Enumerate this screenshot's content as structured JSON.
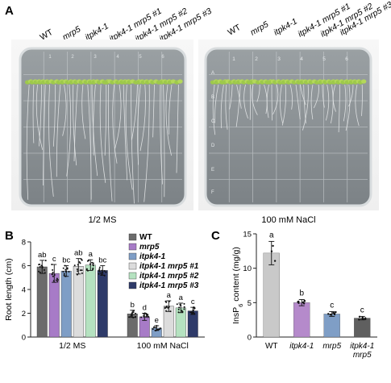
{
  "panels": {
    "A": {
      "label": "A",
      "genotype_labels": [
        "WT",
        "mrp5",
        "itpk4-1",
        "itpk4-1 mrp5 #1",
        "itpk4-1 mrp5 #2",
        "itpk4-1 mrp5 #3"
      ],
      "plate_left_caption": "1/2 MS",
      "plate_right_caption": "100 mM NaCl",
      "plate_column_numbers": [
        "1",
        "2",
        "3",
        "4",
        "5",
        "6"
      ],
      "plate_row_letters": [
        "A",
        "B",
        "C",
        "D",
        "E",
        "F"
      ]
    },
    "B": {
      "label": "B"
    },
    "C": {
      "label": "C"
    }
  },
  "chart_data": [
    {
      "type": "bar",
      "panel": "B",
      "title": "",
      "xlabel": "",
      "ylabel": "Root length (cm)",
      "ylim": [
        0,
        8
      ],
      "yticks": [
        "0",
        "2",
        "4",
        "6",
        "8"
      ],
      "categories": [
        "1/2 MS",
        "100 mM NaCl"
      ],
      "legend_position": "top-right",
      "series": [
        {
          "name": "WT",
          "color": "#6b6b6b",
          "values": [
            5.9,
            1.95
          ],
          "errors": [
            0.55,
            0.3
          ],
          "letters": [
            "ab",
            "b"
          ]
        },
        {
          "name": "mrp5",
          "color": "#a77bc7",
          "values": [
            5.35,
            1.7
          ],
          "errors": [
            0.75,
            0.3
          ],
          "letters": [
            "c",
            "d"
          ]
        },
        {
          "name": "itpk4-1",
          "color": "#7f9ec6",
          "values": [
            5.55,
            0.75
          ],
          "errors": [
            0.45,
            0.2
          ],
          "letters": [
            "bc",
            "e"
          ]
        },
        {
          "name": "itpk4-1 mrp5 #1",
          "color": "#dcdcdc",
          "values": [
            5.95,
            2.6
          ],
          "errors": [
            0.65,
            0.45
          ],
          "letters": [
            "ab",
            "a"
          ]
        },
        {
          "name": "itpk4-1 mrp5 #2",
          "color": "#b5e2c0",
          "values": [
            6.05,
            2.45
          ],
          "errors": [
            0.45,
            0.4
          ],
          "letters": [
            "a",
            "a"
          ]
        },
        {
          "name": "itpk4-1 mrp5 #3",
          "color": "#2e3a69",
          "values": [
            5.6,
            2.2
          ],
          "errors": [
            0.4,
            0.3
          ],
          "letters": [
            "bc",
            "c"
          ]
        }
      ]
    },
    {
      "type": "bar",
      "panel": "C",
      "title": "",
      "xlabel": "",
      "ylabel": "InsP6 content (mg/g)",
      "ylabel_base": "InsP",
      "ylabel_sub": "6",
      "ylabel_rest": " content (mg/g)",
      "ylim": [
        0,
        15
      ],
      "yticks": [
        "0",
        "5",
        "10",
        "15"
      ],
      "categories": [
        "WT",
        "itpk4-1",
        "mrp5",
        "itpk4-1 mrp5"
      ],
      "category_lines": [
        [
          "WT"
        ],
        [
          "itpk4-1"
        ],
        [
          "mrp5"
        ],
        [
          "itpk4-1",
          "mrp5"
        ]
      ],
      "values": [
        12.2,
        5.0,
        3.35,
        2.75
      ],
      "errors": [
        1.7,
        0.45,
        0.35,
        0.25
      ],
      "letters": [
        "a",
        "b",
        "c",
        "c"
      ],
      "colors": [
        "#c9c9c9",
        "#b58acb",
        "#7f9ec6",
        "#5f5f5f"
      ]
    }
  ]
}
